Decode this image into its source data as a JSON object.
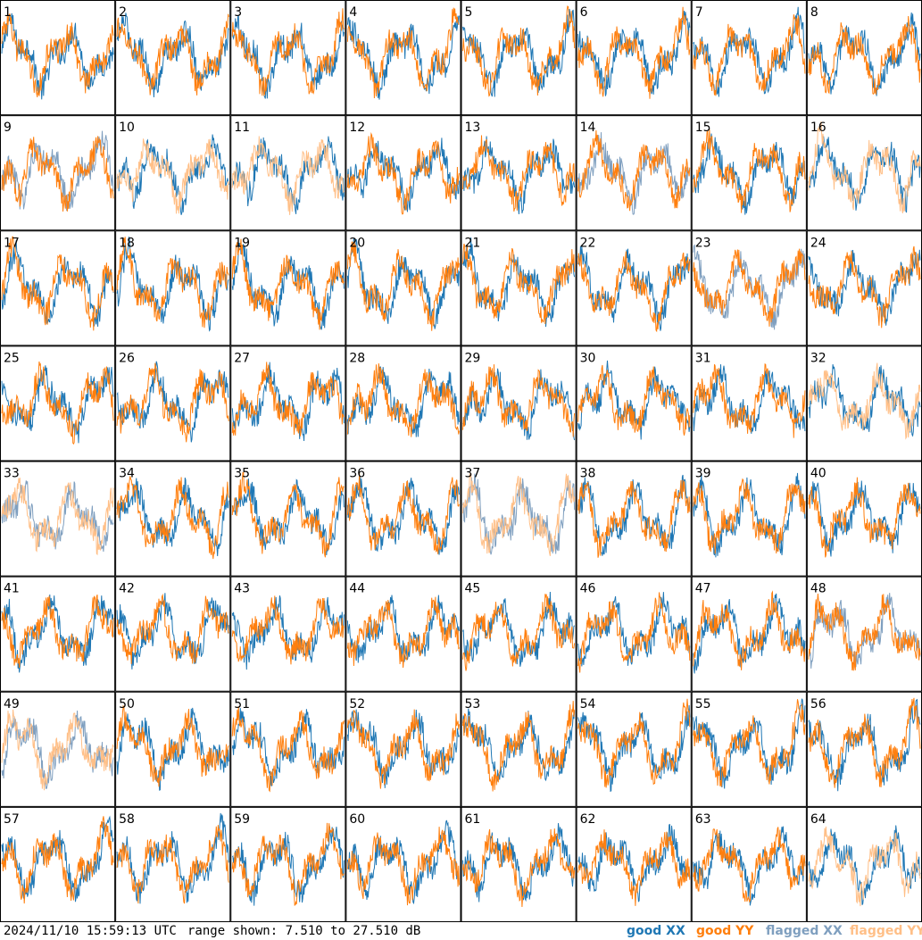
{
  "footer": {
    "timestamp": "2024/11/10 15:59:13 UTC",
    "range_label": "range shown: 7.510 to 27.510 dB",
    "legend": {
      "good_xx": "good XX",
      "good_yy": "good YY",
      "flagged_xx": "flagged XX",
      "flagged_yy": "flagged YY"
    }
  },
  "colors": {
    "good_xx": "#1f77b4",
    "good_yy": "#ff7f0e",
    "flagged_xx": "#7f9fbf",
    "flagged_yy": "#ffbf87"
  },
  "chart_data": {
    "type": "line",
    "grid": {
      "rows": 8,
      "cols": 8
    },
    "ylim": [
      7.51,
      27.51
    ],
    "yunit": "dB",
    "panels": [
      {
        "label": "1",
        "xx": "good",
        "yy": "good"
      },
      {
        "label": "2",
        "xx": "good",
        "yy": "good"
      },
      {
        "label": "3",
        "xx": "good",
        "yy": "good"
      },
      {
        "label": "4",
        "xx": "good",
        "yy": "good"
      },
      {
        "label": "5",
        "xx": "good",
        "yy": "good"
      },
      {
        "label": "6",
        "xx": "good",
        "yy": "good"
      },
      {
        "label": "7",
        "xx": "good",
        "yy": "good"
      },
      {
        "label": "8",
        "xx": "good",
        "yy": "good"
      },
      {
        "label": "9",
        "xx": "flagged",
        "yy": "good"
      },
      {
        "label": "10",
        "xx": "good",
        "yy": "flagged"
      },
      {
        "label": "11",
        "xx": "good",
        "yy": "flagged"
      },
      {
        "label": "12",
        "xx": "good",
        "yy": "good"
      },
      {
        "label": "13",
        "xx": "good",
        "yy": "good"
      },
      {
        "label": "14",
        "xx": "flagged",
        "yy": "good"
      },
      {
        "label": "15",
        "xx": "good",
        "yy": "good"
      },
      {
        "label": "16",
        "xx": "good",
        "yy": "flagged"
      },
      {
        "label": "17",
        "xx": "good",
        "yy": "good"
      },
      {
        "label": "18",
        "xx": "good",
        "yy": "good"
      },
      {
        "label": "19",
        "xx": "good",
        "yy": "good"
      },
      {
        "label": "20",
        "xx": "good",
        "yy": "good"
      },
      {
        "label": "21",
        "xx": "good",
        "yy": "good"
      },
      {
        "label": "22",
        "xx": "good",
        "yy": "good"
      },
      {
        "label": "23",
        "xx": "flagged",
        "yy": "good"
      },
      {
        "label": "24",
        "xx": "good",
        "yy": "good"
      },
      {
        "label": "25",
        "xx": "good",
        "yy": "good"
      },
      {
        "label": "26",
        "xx": "good",
        "yy": "good"
      },
      {
        "label": "27",
        "xx": "good",
        "yy": "good"
      },
      {
        "label": "28",
        "xx": "good",
        "yy": "good"
      },
      {
        "label": "29",
        "xx": "good",
        "yy": "good"
      },
      {
        "label": "30",
        "xx": "good",
        "yy": "good"
      },
      {
        "label": "31",
        "xx": "good",
        "yy": "good"
      },
      {
        "label": "32",
        "xx": "good",
        "yy": "flagged"
      },
      {
        "label": "33",
        "xx": "flagged",
        "yy": "flagged"
      },
      {
        "label": "34",
        "xx": "good",
        "yy": "good"
      },
      {
        "label": "35",
        "xx": "good",
        "yy": "good"
      },
      {
        "label": "36",
        "xx": "good",
        "yy": "good"
      },
      {
        "label": "37",
        "xx": "flagged",
        "yy": "flagged"
      },
      {
        "label": "38",
        "xx": "good",
        "yy": "good"
      },
      {
        "label": "39",
        "xx": "good",
        "yy": "good"
      },
      {
        "label": "40",
        "xx": "good",
        "yy": "good"
      },
      {
        "label": "41",
        "xx": "good",
        "yy": "good"
      },
      {
        "label": "42",
        "xx": "good",
        "yy": "good"
      },
      {
        "label": "43",
        "xx": "good",
        "yy": "good"
      },
      {
        "label": "44",
        "xx": "good",
        "yy": "good"
      },
      {
        "label": "45",
        "xx": "good",
        "yy": "good"
      },
      {
        "label": "46",
        "xx": "good",
        "yy": "good"
      },
      {
        "label": "47",
        "xx": "good",
        "yy": "good"
      },
      {
        "label": "48",
        "xx": "flagged",
        "yy": "good"
      },
      {
        "label": "49",
        "xx": "flagged",
        "yy": "flagged"
      },
      {
        "label": "50",
        "xx": "good",
        "yy": "good"
      },
      {
        "label": "51",
        "xx": "good",
        "yy": "good"
      },
      {
        "label": "52",
        "xx": "good",
        "yy": "good"
      },
      {
        "label": "53",
        "xx": "good",
        "yy": "good"
      },
      {
        "label": "54",
        "xx": "good",
        "yy": "good"
      },
      {
        "label": "55",
        "xx": "good",
        "yy": "good"
      },
      {
        "label": "56",
        "xx": "good",
        "yy": "good"
      },
      {
        "label": "57",
        "xx": "good",
        "yy": "good"
      },
      {
        "label": "58",
        "xx": "good",
        "yy": "good"
      },
      {
        "label": "59",
        "xx": "good",
        "yy": "good"
      },
      {
        "label": "60",
        "xx": "good",
        "yy": "good"
      },
      {
        "label": "61",
        "xx": "good",
        "yy": "good"
      },
      {
        "label": "62",
        "xx": "good",
        "yy": "good"
      },
      {
        "label": "63",
        "xx": "good",
        "yy": "good"
      },
      {
        "label": "64",
        "xx": "good",
        "yy": "flagged"
      }
    ]
  }
}
